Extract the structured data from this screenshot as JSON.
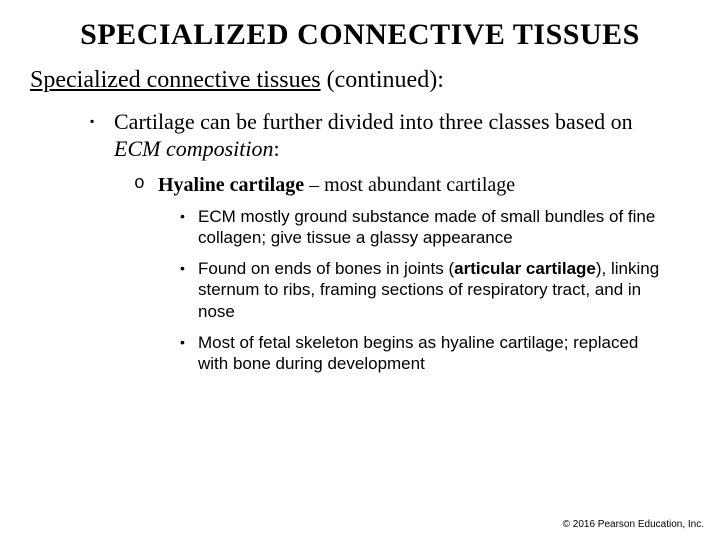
{
  "colors": {
    "background": "#ffffff",
    "text": "#000000"
  },
  "typography": {
    "serif_family": "Times New Roman",
    "sans_family": "Arial",
    "title_fontsize_pt": 30,
    "subtitle_fontsize_pt": 24,
    "level1_fontsize_pt": 22,
    "level2_fontsize_pt": 20,
    "level3_fontsize_pt": 17,
    "copyright_fontsize_pt": 10
  },
  "title": "SPECIALIZED CONNECTIVE TISSUES",
  "subtitle_underlined": "Specialized connective tissues",
  "subtitle_rest": " (continued):",
  "level1_bullet": "▪",
  "level1_pre": "Cartilage can be further divided into three classes based on ",
  "level1_italic": "ECM composition",
  "level1_post": ":",
  "level2_bullet": "o",
  "level2_bold": "Hyaline cartilage",
  "level2_rest": " – most abundant cartilage",
  "level3_bullet": "•",
  "bullets": {
    "b1": "ECM mostly ground substance made of small bundles of fine collagen; give tissue a glassy appearance",
    "b2_pre": "Found on ends of bones in joints (",
    "b2_bold": "articular cartilage",
    "b2_post": "), linking sternum to ribs, framing sections of respiratory tract, and in nose",
    "b3": " Most of fetal skeleton begins as hyaline cartilage; replaced with bone during development"
  },
  "copyright": "© 2016 Pearson Education, Inc."
}
